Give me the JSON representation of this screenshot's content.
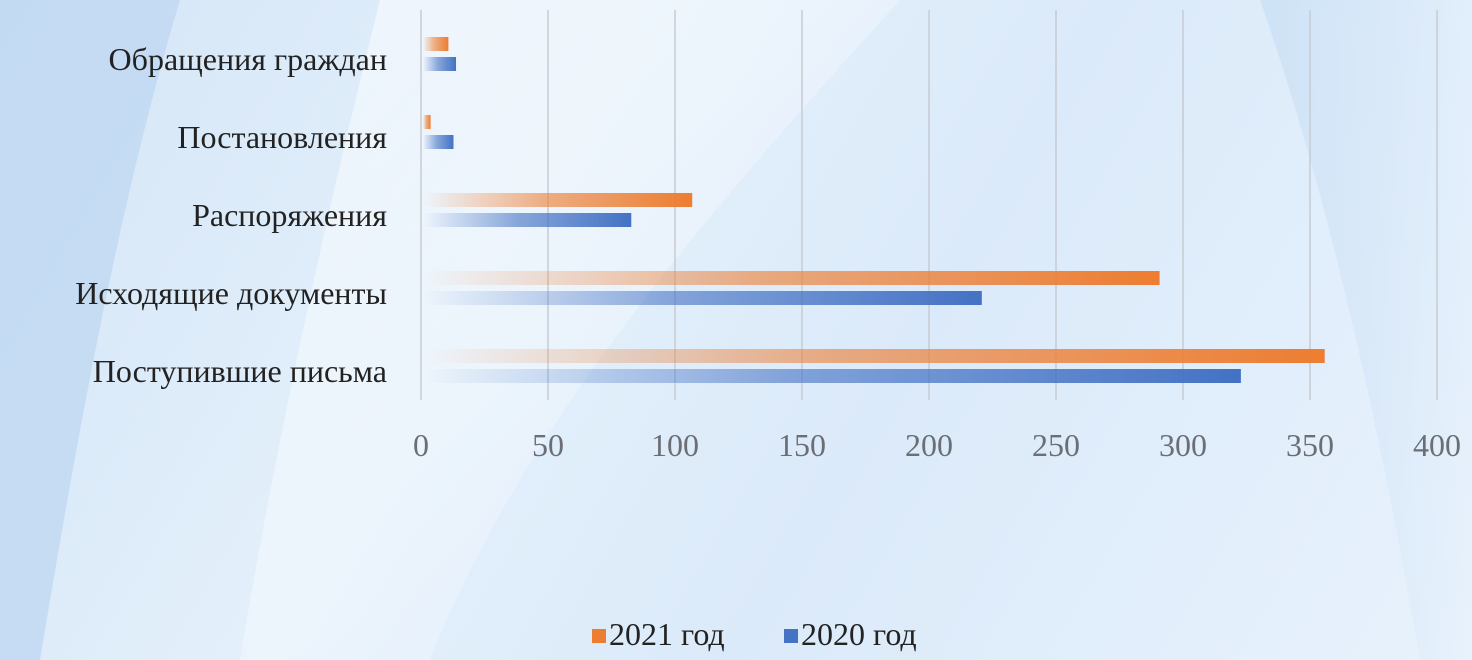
{
  "chart_data": {
    "type": "bar",
    "orientation": "horizontal",
    "categories": [
      "Обращения граждан",
      "Постановления",
      "Распоряжения",
      "Исходящие документы",
      "Поступившие письма"
    ],
    "series": [
      {
        "name": "2021 год",
        "color": "#ed7d31",
        "values": [
          10,
          3,
          106,
          290,
          355
        ]
      },
      {
        "name": "2020 год",
        "color": "#4472c4",
        "values": [
          13,
          12,
          82,
          220,
          322
        ]
      }
    ],
    "xlim": [
      0,
      400
    ],
    "xticks": [
      "0",
      "50",
      "100",
      "150",
      "200",
      "250",
      "300",
      "350",
      "400"
    ],
    "grid": true,
    "legend_position": "bottom"
  }
}
